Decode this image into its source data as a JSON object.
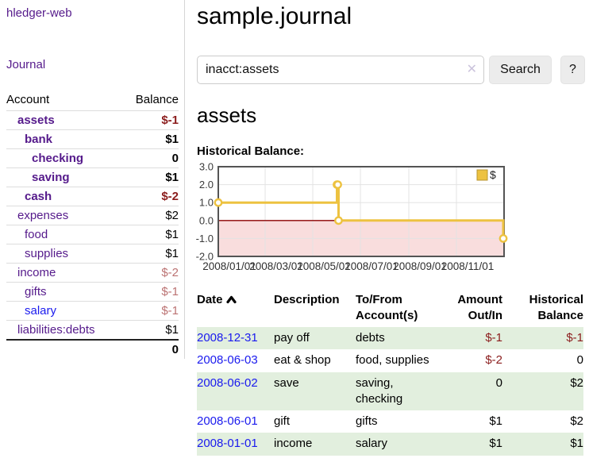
{
  "colors": {
    "link_purple": "#551a8b",
    "link_blue": "#1a1aee",
    "negative": "#8b1d1d",
    "negative_muted": "#bb7272",
    "row_stripe_green": "#e2efde",
    "chart_gold": "#edc240",
    "chart_negative_region": "#f9dddd",
    "chart_zero_line": "#8b0000"
  },
  "sidebar": {
    "brand": "hledger-web",
    "journal_link": "Journal",
    "accounts_table": {
      "account_header": "Account",
      "balance_header": "Balance",
      "rows": [
        {
          "name": "assets",
          "balance": "$-1"
        },
        {
          "name": "bank",
          "balance": "$1"
        },
        {
          "name": "checking",
          "balance": "0"
        },
        {
          "name": "saving",
          "balance": "$1"
        },
        {
          "name": "cash",
          "balance": "$-2"
        },
        {
          "name": "expenses",
          "balance": "$2"
        },
        {
          "name": "food",
          "balance": "$1"
        },
        {
          "name": "supplies",
          "balance": "$1"
        },
        {
          "name": "income",
          "balance": "$-2"
        },
        {
          "name": "gifts",
          "balance": "$-1"
        },
        {
          "name": "salary",
          "balance": "$-1"
        },
        {
          "name": "liabilities:debts",
          "balance": "$1"
        }
      ],
      "total": "0"
    }
  },
  "header": {
    "title": "sample.journal"
  },
  "search": {
    "query": "inacct:assets",
    "clear_icon": "✕",
    "button_label": "Search",
    "help_label": "?"
  },
  "account_page": {
    "heading": "assets",
    "chart_title": "Historical Balance:"
  },
  "chart_data": {
    "type": "line",
    "style": "step",
    "title": "Historical Balance",
    "ylim": [
      -2,
      3
    ],
    "yticks": [
      "3.0",
      "2.0",
      "1.0",
      "0.0",
      "-1.0",
      "-2.0"
    ],
    "xticks": [
      "2008/01/01",
      "2008/03/01",
      "2008/05/01",
      "2008/07/01",
      "2008/09/01",
      "2008/11/01"
    ],
    "x_range": [
      "2008-01-01",
      "2009-01-01"
    ],
    "grid": true,
    "legend_position": "top-right",
    "legend_label": "$",
    "negative_region_color": "#f9dddd",
    "zero_line_color": "#8b0000",
    "series": [
      {
        "name": "$",
        "color": "#edc240",
        "points": [
          [
            "2008-01-01",
            1
          ],
          [
            "2008-06-01",
            2
          ],
          [
            "2008-06-02",
            2
          ],
          [
            "2008-06-03",
            0
          ],
          [
            "2008-12-31",
            -1
          ]
        ]
      }
    ]
  },
  "register": {
    "columns": {
      "date": "Date",
      "description": "Description",
      "accounts": "To/From Account(s)",
      "amount": "Amount Out/In",
      "balance": "Historical Balance"
    },
    "rows": [
      {
        "date": "2008-12-31",
        "description": "pay off",
        "accounts": "debts",
        "amount": "$-1",
        "balance": "$-1"
      },
      {
        "date": "2008-06-03",
        "description": "eat & shop",
        "accounts": "food, supplies",
        "amount": "$-2",
        "balance": "0"
      },
      {
        "date": "2008-06-02",
        "description": "save",
        "accounts": "saving, checking",
        "amount": "0",
        "balance": "$2"
      },
      {
        "date": "2008-06-01",
        "description": "gift",
        "accounts": "gifts",
        "amount": "$1",
        "balance": "$2"
      },
      {
        "date": "2008-01-01",
        "description": "income",
        "accounts": "salary",
        "amount": "$1",
        "balance": "$1"
      }
    ]
  }
}
